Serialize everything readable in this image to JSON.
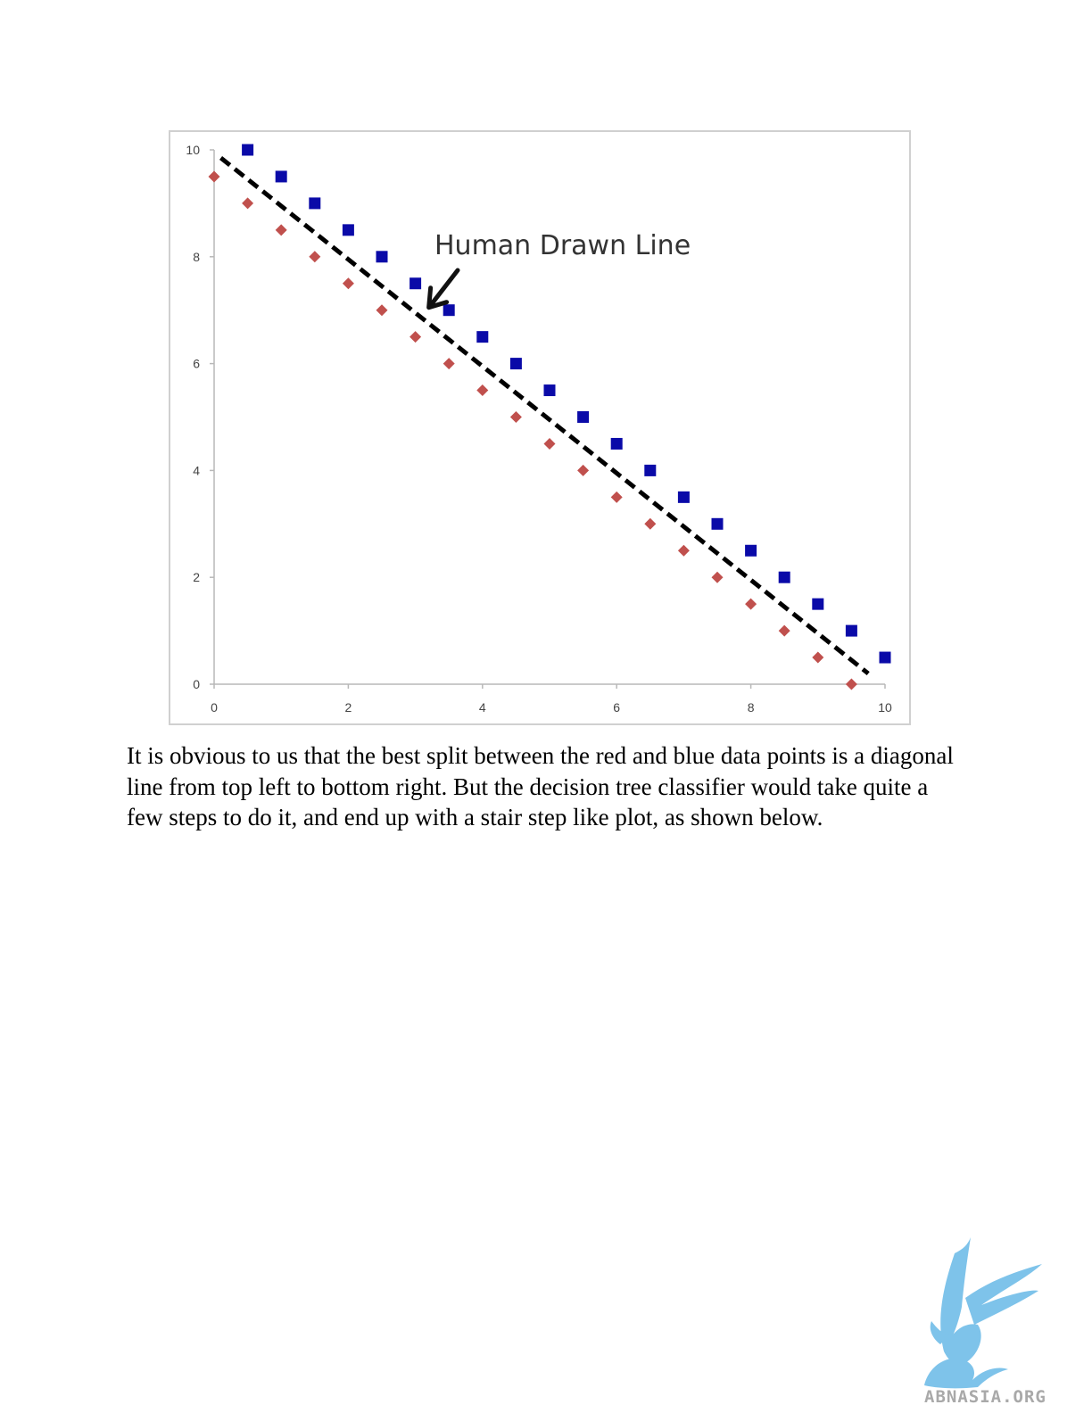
{
  "chart_data": {
    "type": "scatter",
    "xlim": [
      0,
      10
    ],
    "ylim": [
      0,
      10
    ],
    "x_ticks": [
      0,
      2,
      4,
      6,
      8,
      10
    ],
    "y_ticks": [
      0,
      2,
      4,
      6,
      8,
      10
    ],
    "grid": false,
    "series": [
      {
        "marker": "square",
        "color": "#0a0aa8",
        "points": [
          [
            0.5,
            10
          ],
          [
            1,
            9.5
          ],
          [
            1.5,
            9
          ],
          [
            2,
            8.5
          ],
          [
            2.5,
            8
          ],
          [
            3,
            7.5
          ],
          [
            3.5,
            7
          ],
          [
            4,
            6.5
          ],
          [
            4.5,
            6
          ],
          [
            5,
            5.5
          ],
          [
            5.5,
            5
          ],
          [
            6,
            4.5
          ],
          [
            6.5,
            4
          ],
          [
            7,
            3.5
          ],
          [
            7.5,
            3
          ],
          [
            8,
            2.5
          ],
          [
            8.5,
            2
          ],
          [
            9,
            1.5
          ],
          [
            9.5,
            1
          ],
          [
            10,
            0.5
          ]
        ]
      },
      {
        "marker": "diamond",
        "color": "#c0504d",
        "points": [
          [
            0,
            9.5
          ],
          [
            0.5,
            9
          ],
          [
            1,
            8.5
          ],
          [
            1.5,
            8
          ],
          [
            2,
            7.5
          ],
          [
            2.5,
            7
          ],
          [
            3,
            6.5
          ],
          [
            3.5,
            6
          ],
          [
            4,
            5.5
          ],
          [
            4.5,
            5
          ],
          [
            5,
            4.5
          ],
          [
            5.5,
            4
          ],
          [
            6,
            3.5
          ],
          [
            6.5,
            3
          ],
          [
            7,
            2.5
          ],
          [
            7.5,
            2
          ],
          [
            8,
            1.5
          ],
          [
            8.5,
            1
          ],
          [
            9,
            0.5
          ],
          [
            9.5,
            0
          ]
        ]
      }
    ],
    "line": {
      "style": "dashed",
      "color": "#000000",
      "points": [
        [
          0.1,
          9.85
        ],
        [
          9.75,
          0.2
        ]
      ]
    },
    "annotation": {
      "text": "Human Drawn Line",
      "arrow_to": [
        3.2,
        7.05
      ]
    }
  },
  "body_text": "It is obvious to us that the best split between the red and blue data points is a diagonal line from top left to bottom right.  But the decision tree classifier would take quite a few steps to do it, and end up with a stair step like plot, as shown below.",
  "logo": {
    "text": "ABNASIA.ORG",
    "color": "#7ec3ea"
  }
}
